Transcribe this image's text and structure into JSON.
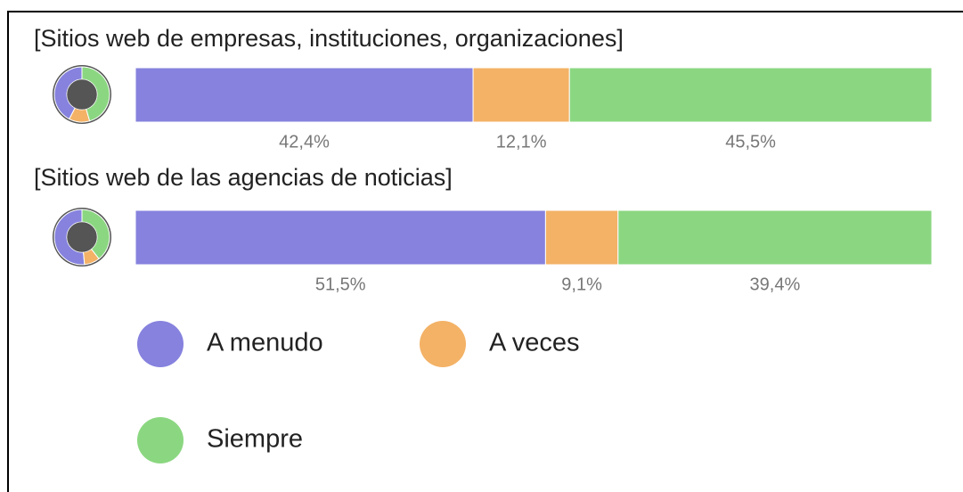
{
  "chart_data": {
    "type": "bar",
    "orientation": "horizontal",
    "stacked": true,
    "categories": [
      "[Sitios web de empresas, instituciones, organizaciones]",
      "[Sitios web de las agencias de noticias]"
    ],
    "xlim": [
      0,
      100
    ],
    "series": [
      {
        "name": "A menudo",
        "color": "#8682de",
        "values": [
          42.4,
          51.5
        ],
        "value_labels": [
          "42,4%",
          "51,5%"
        ]
      },
      {
        "name": "A veces",
        "color": "#f3b266",
        "values": [
          12.1,
          9.1
        ],
        "value_labels": [
          "12,1%",
          "9,1%"
        ]
      },
      {
        "name": "Siempre",
        "color": "#8bd781",
        "values": [
          45.5,
          39.4
        ],
        "value_labels": [
          "45,5%",
          "39,4%"
        ]
      }
    ]
  }
}
